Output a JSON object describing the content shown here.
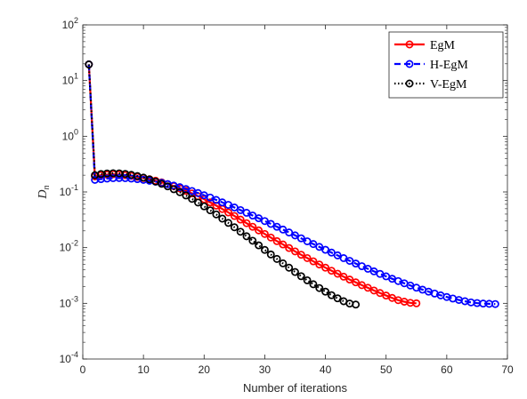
{
  "chart_data": {
    "type": "line",
    "title": "",
    "xlabel": "Number of iterations",
    "ylabel_main": "D",
    "ylabel_sub": "n",
    "xlim": [
      0,
      70
    ],
    "ylim": [
      0.0001,
      100
    ],
    "yscale": "log",
    "xticks": [
      "0",
      "10",
      "20",
      "30",
      "40",
      "50",
      "60",
      "70"
    ],
    "yticks": [
      {
        "base": "10",
        "exp": "-4"
      },
      {
        "base": "10",
        "exp": "-3"
      },
      {
        "base": "10",
        "exp": "-2"
      },
      {
        "base": "10",
        "exp": "-1"
      },
      {
        "base": "10",
        "exp": "0"
      },
      {
        "base": "10",
        "exp": "1"
      },
      {
        "base": "10",
        "exp": "2"
      }
    ],
    "grid": false,
    "legend_position": "top-right",
    "series": [
      {
        "name": "EgM",
        "color": "#ff0000",
        "line_style": "solid",
        "x_start": 1,
        "values": [
          19.5,
          0.19,
          0.2,
          0.205,
          0.208,
          0.206,
          0.2,
          0.194,
          0.186,
          0.178,
          0.169,
          0.159,
          0.149,
          0.138,
          0.127,
          0.116,
          0.105,
          0.094,
          0.084,
          0.074,
          0.065,
          0.0568,
          0.0494,
          0.0428,
          0.037,
          0.0319,
          0.0275,
          0.0237,
          0.0204,
          0.0176,
          0.0152,
          0.0131,
          0.0114,
          0.00985,
          0.00856,
          0.00745,
          0.0065,
          0.00568,
          0.00498,
          0.00437,
          0.00385,
          0.0034,
          0.00301,
          0.00267,
          0.00238,
          0.00212,
          0.0019,
          0.0017,
          0.00153,
          0.00138,
          0.00125,
          0.00114,
          0.00107,
          0.00102,
          0.001
        ]
      },
      {
        "name": "H-EgM",
        "color": "#0000ff",
        "line_style": "dashed",
        "x_start": 1,
        "values": [
          19.5,
          0.165,
          0.17,
          0.174,
          0.177,
          0.178,
          0.177,
          0.174,
          0.17,
          0.165,
          0.159,
          0.153,
          0.146,
          0.138,
          0.13,
          0.122,
          0.113,
          0.104,
          0.0955,
          0.0872,
          0.0793,
          0.0719,
          0.065,
          0.0586,
          0.0526,
          0.0472,
          0.0422,
          0.0377,
          0.0337,
          0.03,
          0.0267,
          0.0237,
          0.0211,
          0.0187,
          0.0166,
          0.0147,
          0.013,
          0.0116,
          0.0103,
          0.00915,
          0.00815,
          0.00726,
          0.00648,
          0.00579,
          0.00518,
          0.00464,
          0.00417,
          0.00375,
          0.00338,
          0.00305,
          0.00276,
          0.00251,
          0.00229,
          0.00209,
          0.00191,
          0.00176,
          0.00162,
          0.0015,
          0.00139,
          0.0013,
          0.00122,
          0.00115,
          0.00109,
          0.00104,
          0.00101,
          0.00099,
          0.00098,
          0.00097
        ]
      },
      {
        "name": "V-EgM",
        "color": "#000000",
        "line_style": "dotted",
        "x_start": 1,
        "values": [
          19.5,
          0.2,
          0.21,
          0.215,
          0.217,
          0.216,
          0.211,
          0.203,
          0.193,
          0.181,
          0.168,
          0.154,
          0.14,
          0.126,
          0.112,
          0.099,
          0.0866,
          0.0751,
          0.0646,
          0.0552,
          0.0468,
          0.0395,
          0.0332,
          0.0278,
          0.0232,
          0.0193,
          0.016,
          0.0133,
          0.011,
          0.0091,
          0.00755,
          0.00627,
          0.00522,
          0.00436,
          0.00365,
          0.00307,
          0.00259,
          0.0022,
          0.00188,
          0.00162,
          0.0014,
          0.00123,
          0.00109,
          0.00099,
          0.00095
        ]
      }
    ]
  }
}
